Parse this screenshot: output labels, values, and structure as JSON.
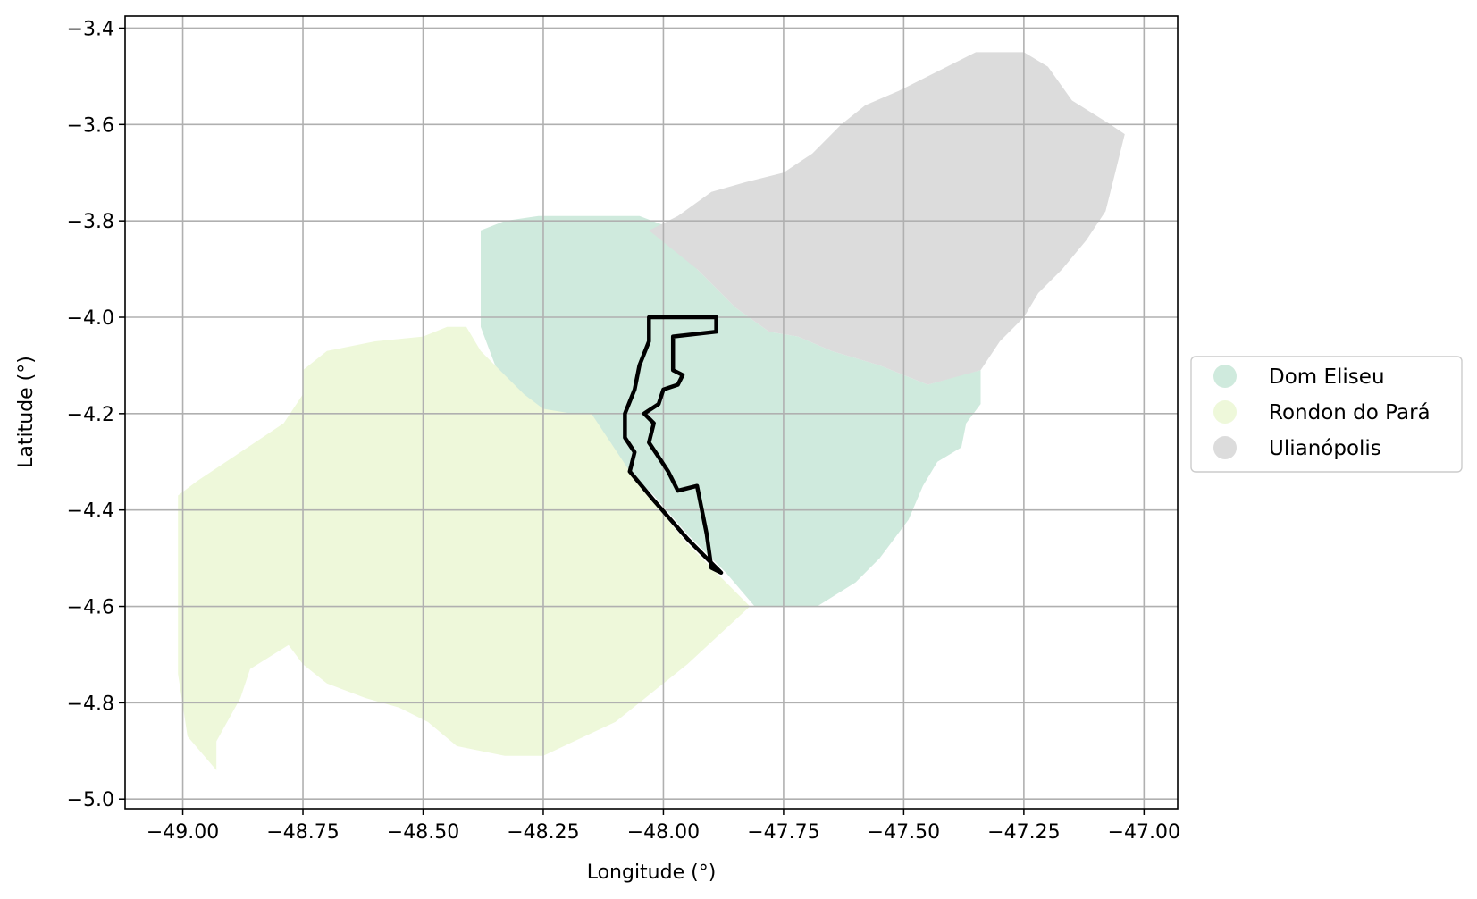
{
  "chart_data": {
    "type": "map",
    "xlabel": "Longitude (°)",
    "ylabel": "Latitude (°)",
    "xlim": [
      -49.12,
      -46.93
    ],
    "ylim": [
      -5.02,
      -3.375
    ],
    "grid": true,
    "legend_position": "right",
    "x_ticks": [
      -49.0,
      -48.75,
      -48.5,
      -48.25,
      -48.0,
      -47.75,
      -47.5,
      -47.25,
      -47.0
    ],
    "x_tick_labels": [
      "−49.00",
      "−48.75",
      "−48.50",
      "−48.25",
      "−48.00",
      "−47.75",
      "−47.50",
      "−47.25",
      "−47.00"
    ],
    "y_ticks": [
      -3.4,
      -3.6,
      -3.8,
      -4.0,
      -4.2,
      -4.4,
      -4.6,
      -4.8,
      -5.0
    ],
    "y_tick_labels": [
      "−3.4",
      "−3.6",
      "−3.8",
      "−4.0",
      "−4.2",
      "−4.4",
      "−4.6",
      "−4.8",
      "−5.0"
    ],
    "regions": [
      {
        "name": "Dom Eliseu",
        "color": "#cfeadd",
        "outline": [
          [
            -48.38,
            -3.82
          ],
          [
            -48.33,
            -3.8
          ],
          [
            -48.26,
            -3.79
          ],
          [
            -48.15,
            -3.79
          ],
          [
            -48.05,
            -3.79
          ],
          [
            -47.97,
            -3.82
          ],
          [
            -47.93,
            -3.9
          ],
          [
            -47.85,
            -3.98
          ],
          [
            -47.78,
            -4.03
          ],
          [
            -47.72,
            -4.04
          ],
          [
            -47.65,
            -4.07
          ],
          [
            -47.55,
            -4.1
          ],
          [
            -47.45,
            -4.14
          ],
          [
            -47.38,
            -4.12
          ],
          [
            -47.34,
            -4.11
          ],
          [
            -47.34,
            -4.18
          ],
          [
            -47.37,
            -4.22
          ],
          [
            -47.38,
            -4.27
          ],
          [
            -47.43,
            -4.3
          ],
          [
            -47.46,
            -4.35
          ],
          [
            -47.49,
            -4.42
          ],
          [
            -47.55,
            -4.5
          ],
          [
            -47.6,
            -4.55
          ],
          [
            -47.68,
            -4.6
          ],
          [
            -47.75,
            -4.6
          ],
          [
            -47.81,
            -4.6
          ],
          [
            -47.87,
            -4.53
          ],
          [
            -47.95,
            -4.45
          ],
          [
            -48.02,
            -4.37
          ],
          [
            -48.08,
            -4.31
          ],
          [
            -48.11,
            -4.26
          ],
          [
            -48.16,
            -4.21
          ],
          [
            -48.25,
            -4.22
          ],
          [
            -48.3,
            -4.17
          ],
          [
            -48.35,
            -4.1
          ],
          [
            -48.38,
            -4.02
          ],
          [
            -48.38,
            -3.9
          ]
        ]
      },
      {
        "name": "Rondon do Pará",
        "color": "#eef8da",
        "outline": [
          [
            -48.41,
            -4.02
          ],
          [
            -48.38,
            -4.07
          ],
          [
            -48.33,
            -4.12
          ],
          [
            -48.29,
            -4.16
          ],
          [
            -48.25,
            -4.19
          ],
          [
            -48.19,
            -4.2
          ],
          [
            -48.15,
            -4.2
          ],
          [
            -48.05,
            -4.35
          ],
          [
            -47.95,
            -4.47
          ],
          [
            -47.82,
            -4.6
          ],
          [
            -47.95,
            -4.72
          ],
          [
            -48.1,
            -4.84
          ],
          [
            -48.25,
            -4.91
          ],
          [
            -48.33,
            -4.91
          ],
          [
            -48.43,
            -4.89
          ],
          [
            -48.49,
            -4.84
          ],
          [
            -48.55,
            -4.81
          ],
          [
            -48.62,
            -4.79
          ],
          [
            -48.7,
            -4.76
          ],
          [
            -48.75,
            -4.72
          ],
          [
            -48.78,
            -4.68
          ],
          [
            -48.86,
            -4.73
          ],
          [
            -48.88,
            -4.79
          ],
          [
            -48.93,
            -4.88
          ],
          [
            -48.93,
            -4.94
          ],
          [
            -48.99,
            -4.87
          ],
          [
            -49.01,
            -4.74
          ],
          [
            -49.01,
            -4.55
          ],
          [
            -49.01,
            -4.37
          ],
          [
            -48.97,
            -4.34
          ],
          [
            -48.88,
            -4.28
          ],
          [
            -48.79,
            -4.22
          ],
          [
            -48.75,
            -4.16
          ],
          [
            -48.75,
            -4.11
          ],
          [
            -48.7,
            -4.07
          ],
          [
            -48.6,
            -4.05
          ],
          [
            -48.5,
            -4.04
          ],
          [
            -48.45,
            -4.02
          ]
        ]
      },
      {
        "name": "Ulianópolis",
        "color": "#dcdcdc",
        "outline": [
          [
            -48.03,
            -3.82
          ],
          [
            -47.97,
            -3.79
          ],
          [
            -47.9,
            -3.74
          ],
          [
            -47.83,
            -3.72
          ],
          [
            -47.75,
            -3.7
          ],
          [
            -47.69,
            -3.66
          ],
          [
            -47.63,
            -3.6
          ],
          [
            -47.58,
            -3.56
          ],
          [
            -47.51,
            -3.53
          ],
          [
            -47.43,
            -3.49
          ],
          [
            -47.35,
            -3.45
          ],
          [
            -47.25,
            -3.45
          ],
          [
            -47.2,
            -3.48
          ],
          [
            -47.15,
            -3.55
          ],
          [
            -47.07,
            -3.6
          ],
          [
            -47.04,
            -3.62
          ],
          [
            -47.06,
            -3.7
          ],
          [
            -47.08,
            -3.78
          ],
          [
            -47.12,
            -3.84
          ],
          [
            -47.17,
            -3.9
          ],
          [
            -47.22,
            -3.95
          ],
          [
            -47.25,
            -4.0
          ],
          [
            -47.3,
            -4.05
          ],
          [
            -47.34,
            -4.11
          ],
          [
            -47.45,
            -4.14
          ],
          [
            -47.55,
            -4.1
          ],
          [
            -47.65,
            -4.07
          ],
          [
            -47.72,
            -4.04
          ],
          [
            -47.78,
            -4.03
          ],
          [
            -47.85,
            -3.98
          ],
          [
            -47.93,
            -3.9
          ]
        ]
      }
    ],
    "boundary_outline": [
      [
        -48.03,
        -4.0
      ],
      [
        -47.89,
        -4.0
      ],
      [
        -47.89,
        -4.03
      ],
      [
        -47.98,
        -4.04
      ],
      [
        -47.98,
        -4.11
      ],
      [
        -47.96,
        -4.12
      ],
      [
        -47.97,
        -4.14
      ],
      [
        -48.0,
        -4.15
      ],
      [
        -48.01,
        -4.18
      ],
      [
        -48.04,
        -4.2
      ],
      [
        -48.02,
        -4.22
      ],
      [
        -48.03,
        -4.26
      ],
      [
        -48.01,
        -4.29
      ],
      [
        -47.99,
        -4.32
      ],
      [
        -47.97,
        -4.36
      ],
      [
        -47.93,
        -4.35
      ],
      [
        -47.91,
        -4.45
      ],
      [
        -47.9,
        -4.52
      ],
      [
        -47.88,
        -4.53
      ],
      [
        -47.95,
        -4.46
      ],
      [
        -48.02,
        -4.38
      ],
      [
        -48.07,
        -4.32
      ],
      [
        -48.06,
        -4.28
      ],
      [
        -48.08,
        -4.25
      ],
      [
        -48.08,
        -4.2
      ],
      [
        -48.06,
        -4.15
      ],
      [
        -48.05,
        -4.1
      ],
      [
        -48.03,
        -4.05
      ]
    ]
  }
}
